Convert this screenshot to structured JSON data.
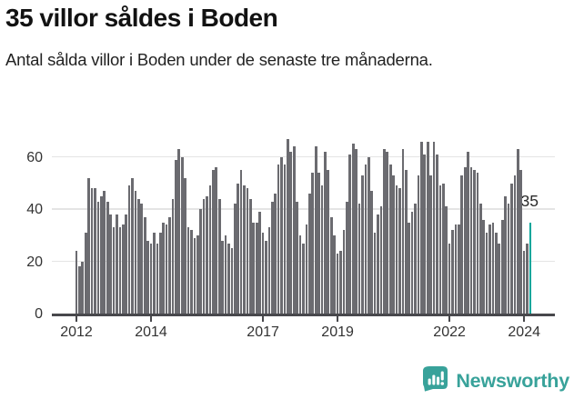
{
  "header": {
    "title": "35 villor såldes i Boden",
    "subtitle": "Antal sålda villor i Boden under de senaste tre månaderna."
  },
  "chart_data": {
    "type": "bar",
    "title": "35 villor såldes i Boden",
    "subtitle": "Antal sålda villor i Boden under de senaste tre månaderna.",
    "x_start_month": "2012-01",
    "x_end_month": "2024-03",
    "x_tick_years": [
      2012,
      2014,
      2017,
      2019,
      2022,
      2024
    ],
    "y_ticks": [
      0,
      20,
      40,
      60
    ],
    "ylim": [
      0,
      70
    ],
    "grid": true,
    "bar_color": "#6b6b70",
    "highlight_color": "#00a69b",
    "highlight_index": 146,
    "annotation_label": "35",
    "values": [
      24,
      18,
      20,
      31,
      52,
      48,
      48,
      43,
      45,
      47,
      43,
      38,
      33,
      38,
      33,
      34,
      38,
      49,
      52,
      47,
      44,
      42,
      37,
      28,
      27,
      31,
      27,
      31,
      35,
      34,
      37,
      44,
      59,
      63,
      60,
      52,
      33,
      32,
      29,
      30,
      40,
      44,
      45,
      49,
      55,
      56,
      44,
      28,
      30,
      27,
      25,
      42,
      50,
      55,
      49,
      48,
      44,
      35,
      35,
      39,
      31,
      28,
      33,
      43,
      46,
      57,
      60,
      57,
      67,
      62,
      64,
      43,
      30,
      27,
      34,
      46,
      54,
      64,
      54,
      49,
      62,
      55,
      37,
      30,
      23,
      24,
      32,
      43,
      61,
      65,
      63,
      42,
      53,
      57,
      60,
      47,
      31,
      38,
      41,
      63,
      62,
      57,
      53,
      49,
      48,
      63,
      55,
      35,
      39,
      42,
      53,
      66,
      61,
      66,
      53,
      66,
      61,
      49,
      50,
      41,
      27,
      32,
      34,
      34,
      53,
      56,
      62,
      56,
      55,
      54,
      42,
      36,
      31,
      34,
      35,
      31,
      27,
      36,
      45,
      42,
      50,
      53,
      63,
      55,
      24,
      27,
      35
    ]
  },
  "footer": {
    "brand": "Newsworthy",
    "brand_color": "#38a29a",
    "logo_icon": "newsworthy-bubble-chart-icon"
  }
}
